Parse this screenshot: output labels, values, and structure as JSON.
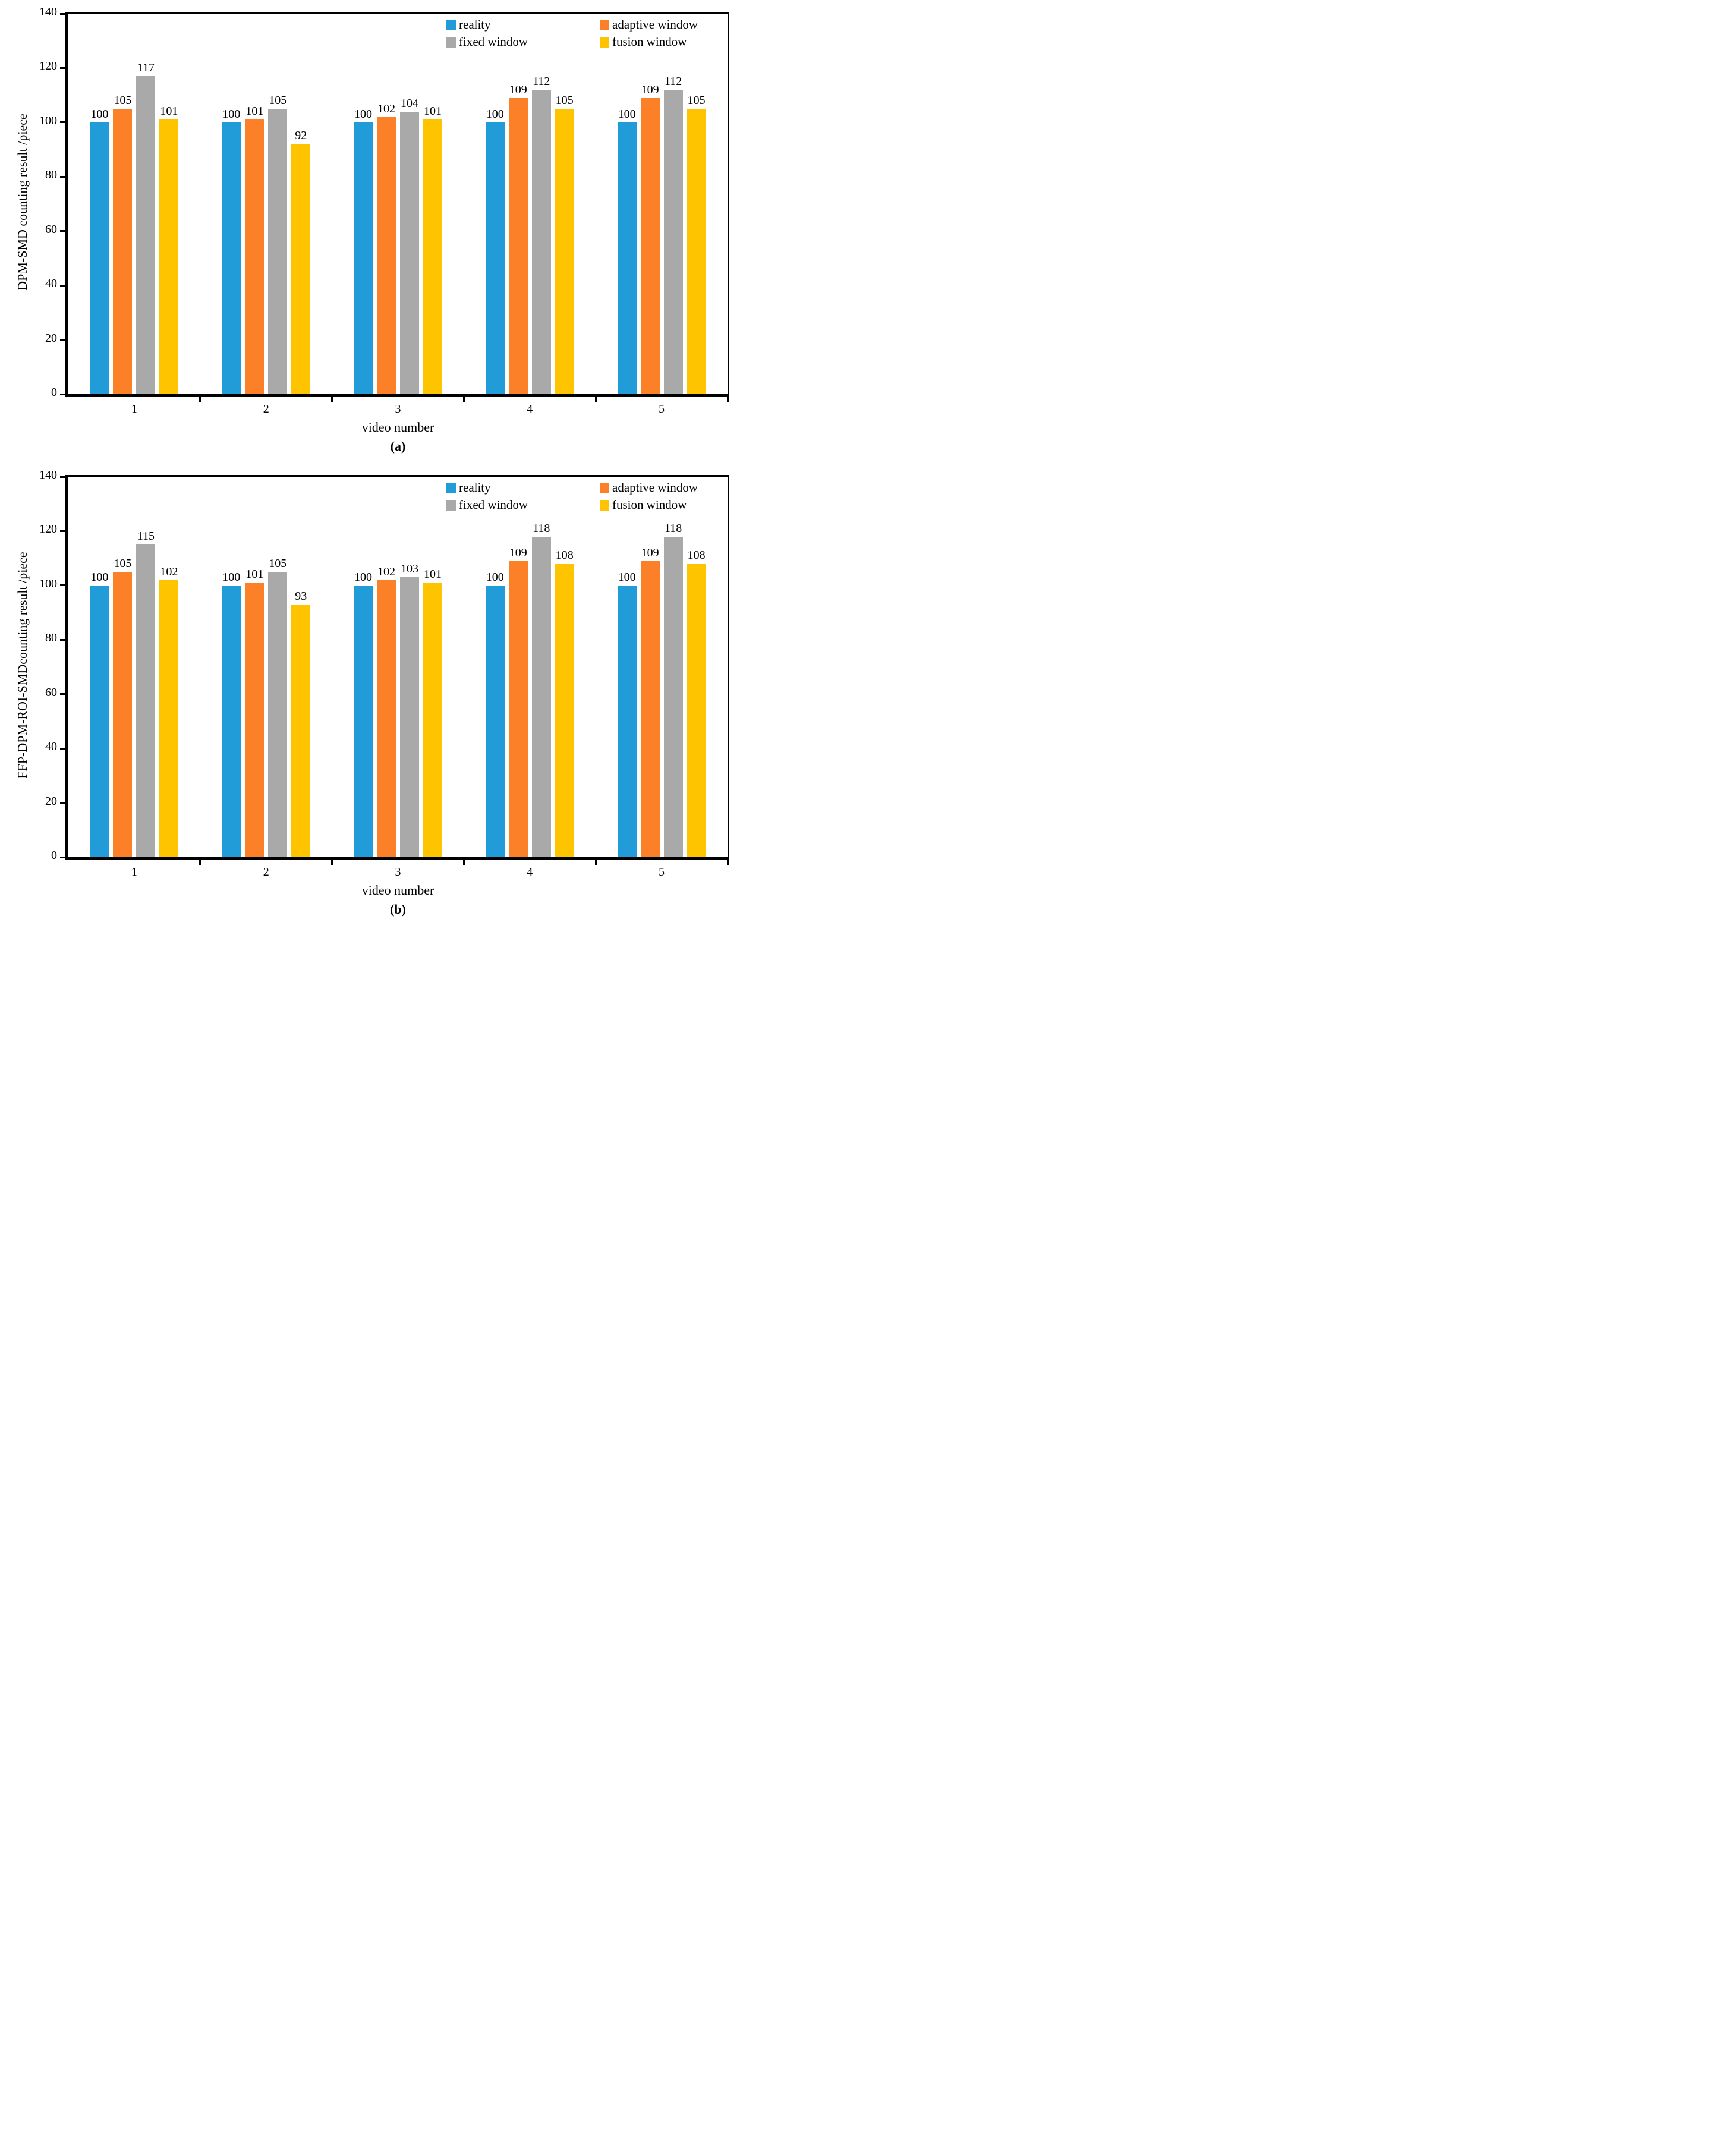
{
  "figure": {
    "background": "#ffffff",
    "axis_color": "#000000",
    "text_color": "#000000"
  },
  "legend": {
    "position": "top-right",
    "items": [
      {
        "label": "reality",
        "color": "#219CD9"
      },
      {
        "label": "adaptive window",
        "color": "#FC8027"
      },
      {
        "label": "fixed window",
        "color": "#A9A9A9"
      },
      {
        "label": "fusion window",
        "color": "#FFC400"
      }
    ]
  },
  "chart_data": [
    {
      "type": "bar",
      "panel_label": "(a)",
      "ylabel": "DPM-SMD counting result /piece",
      "xlabel": "video number",
      "categories": [
        "1",
        "2",
        "3",
        "4",
        "5"
      ],
      "series": [
        {
          "name": "reality",
          "color": "#219CD9",
          "values": [
            100,
            100,
            100,
            100,
            100
          ]
        },
        {
          "name": "adaptive window",
          "color": "#FC8027",
          "values": [
            105,
            101,
            102,
            109,
            109
          ]
        },
        {
          "name": "fixed window",
          "color": "#A9A9A9",
          "values": [
            117,
            105,
            104,
            112,
            112
          ]
        },
        {
          "name": "fusion window",
          "color": "#FFC400",
          "values": [
            101,
            92,
            101,
            105,
            105
          ]
        }
      ],
      "ylim": [
        0,
        140
      ],
      "yticks": [
        0,
        20,
        40,
        60,
        80,
        100,
        120,
        140
      ],
      "grid": false,
      "legend_position": "top-right",
      "data_labels": true
    },
    {
      "type": "bar",
      "panel_label": "(b)",
      "ylabel": "FFP-DPM-ROI-SMDcounting result /piece",
      "xlabel": "video number",
      "categories": [
        "1",
        "2",
        "3",
        "4",
        "5"
      ],
      "series": [
        {
          "name": "reality",
          "color": "#219CD9",
          "values": [
            100,
            100,
            100,
            100,
            100
          ]
        },
        {
          "name": "adaptive window",
          "color": "#FC8027",
          "values": [
            105,
            101,
            102,
            109,
            109
          ]
        },
        {
          "name": "fixed window",
          "color": "#A9A9A9",
          "values": [
            115,
            105,
            103,
            118,
            118
          ]
        },
        {
          "name": "fusion window",
          "color": "#FFC400",
          "values": [
            102,
            93,
            101,
            108,
            108
          ]
        }
      ],
      "ylim": [
        0,
        140
      ],
      "yticks": [
        0,
        20,
        40,
        60,
        80,
        100,
        120,
        140
      ],
      "grid": false,
      "legend_position": "top-right",
      "data_labels": true
    }
  ]
}
